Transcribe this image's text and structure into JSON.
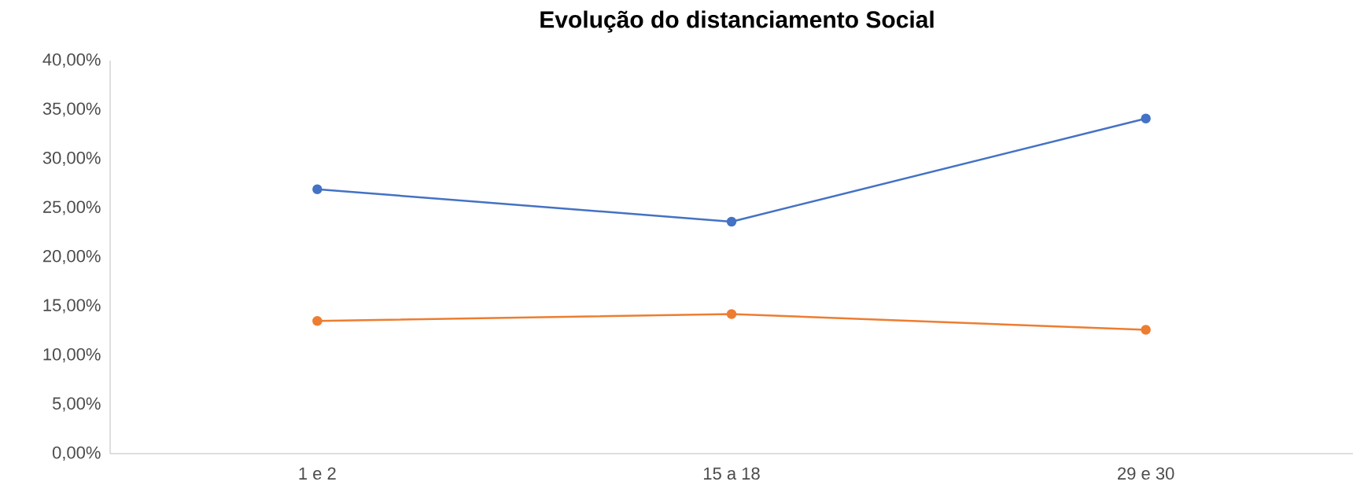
{
  "chart_data": {
    "type": "line",
    "title": "Evolução do distanciamento Social",
    "categories": [
      "1 e 2",
      "15 a 18",
      "29 e 30"
    ],
    "series": [
      {
        "color": "#4472c4",
        "values": [
          26.9,
          23.6,
          34.1
        ]
      },
      {
        "color": "#ed7d31",
        "values": [
          13.5,
          14.2,
          12.6
        ]
      }
    ],
    "ylim": [
      0,
      40
    ],
    "yticks": [
      {
        "value": 0,
        "label": "0,00%"
      },
      {
        "value": 5,
        "label": "5,00%"
      },
      {
        "value": 10,
        "label": "10,00%"
      },
      {
        "value": 15,
        "label": "15,00%"
      },
      {
        "value": 20,
        "label": "20,00%"
      },
      {
        "value": 25,
        "label": "25,00%"
      },
      {
        "value": 30,
        "label": "30,00%"
      },
      {
        "value": 35,
        "label": "35,00%"
      },
      {
        "value": 40,
        "label": "40,00%"
      }
    ],
    "marker": "circle",
    "line_style": "solid"
  }
}
